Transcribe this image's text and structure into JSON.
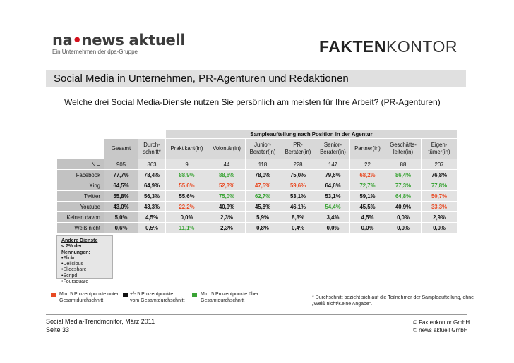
{
  "logo_left": {
    "brand_a": "na",
    "brand_dot": "•",
    "brand_b": "news aktuell",
    "tagline": "Ein Unternehmen der dpa-Gruppe"
  },
  "logo_right": {
    "bold": "FAKTEN",
    "light": "KONTOR"
  },
  "title": "Social Media in Unternehmen, PR-Agenturen und Redaktionen",
  "question": "Welche drei Social Media-Dienste nutzen Sie persönlich am meisten für Ihre Arbeit? (PR-Agenturen)",
  "table": {
    "group_header": "Sampleaufteilung nach Position in der Agentur",
    "columns": [
      "Gesamt",
      "Durch- schnitt*",
      "Praktikant(in)",
      "Volontär(in)",
      "Junior- Berater(in)",
      "PR- Berater(in)",
      "Senior- Berater(in)",
      "Partner(in)",
      "Geschäfts- leiter(in)",
      "Eigen- tümer(in)"
    ],
    "rows": [
      {
        "label": "N =",
        "values": [
          "905",
          "863",
          "9",
          "44",
          "118",
          "228",
          "147",
          "22",
          "88",
          "207"
        ],
        "colors": [
          "",
          "",
          "",
          "",
          "",
          "",
          "",
          "",
          "",
          ""
        ]
      },
      {
        "label": "Facebook",
        "values": [
          "77,7%",
          "78,4%",
          "88,9%",
          "88,6%",
          "78,0%",
          "75,0%",
          "79,6%",
          "68,2%",
          "86,4%",
          "76,8%"
        ],
        "colors": [
          "",
          "",
          "green",
          "green",
          "",
          "",
          "",
          "red",
          "green",
          ""
        ]
      },
      {
        "label": "Xing",
        "values": [
          "64,5%",
          "64,9%",
          "55,6%",
          "52,3%",
          "47,5%",
          "59,6%",
          "64,6%",
          "72,7%",
          "77,3%",
          "77,8%"
        ],
        "colors": [
          "",
          "",
          "red",
          "red",
          "red",
          "red",
          "",
          "green",
          "green",
          "green"
        ]
      },
      {
        "label": "Twitter",
        "values": [
          "55,8%",
          "56,3%",
          "55,6%",
          "75,0%",
          "62,7%",
          "53,1%",
          "53,1%",
          "59,1%",
          "64,8%",
          "50,7%"
        ],
        "colors": [
          "",
          "",
          "",
          "green",
          "green",
          "",
          "",
          "",
          "green",
          "red"
        ]
      },
      {
        "label": "Youtube",
        "values": [
          "43,0%",
          "43,3%",
          "22,2%",
          "40,9%",
          "45,8%",
          "46,1%",
          "54,4%",
          "45,5%",
          "40,9%",
          "33,3%"
        ],
        "colors": [
          "",
          "",
          "red",
          "",
          "",
          "",
          "green",
          "",
          "",
          "red"
        ]
      },
      {
        "label": "Keinen davon",
        "values": [
          "5,0%",
          "4,5%",
          "0,0%",
          "2,3%",
          "5,9%",
          "8,3%",
          "3,4%",
          "4,5%",
          "0,0%",
          "2,9%"
        ],
        "colors": [
          "",
          "",
          "",
          "",
          "",
          "",
          "",
          "",
          "",
          ""
        ]
      },
      {
        "label": "Weiß nicht",
        "values": [
          "0,6%",
          "0,5%",
          "11,1%",
          "2,3%",
          "0,8%",
          "0,4%",
          "0,0%",
          "0,0%",
          "0,0%",
          "0,0%"
        ],
        "colors": [
          "",
          "",
          "green",
          "",
          "",
          "",
          "",
          "",
          "",
          ""
        ]
      }
    ]
  },
  "other_services": {
    "title": "Andere Dienste",
    "subtitle": "< 7% der Nennungen:",
    "items": [
      "•Flickr",
      "•Delicious",
      "•Slideshare",
      "•Scripd",
      "•Foursquare"
    ]
  },
  "legend": [
    {
      "color": "#e84a23",
      "line1": "Min. 5 Prozentpunkte unter",
      "line2": "Gesamtdurchschnitt"
    },
    {
      "color": "#111111",
      "line1": "+/- 5 Prozentpunkte",
      "line2": "vom Gesamtdurchschnitt"
    },
    {
      "color": "#3aa335",
      "line1": "Min. 5 Prozentpunkte über",
      "line2": "Gesamtdurchschnitt"
    }
  ],
  "footnote": "* Durchschnitt bezieht sich auf die Teilnehmer der Sampleaufteilung, ohne „Weiß nicht/Keine Angabe“.",
  "footer": {
    "left_line1": "Social Media-Trendmonitor, März 2011",
    "left_line2": "Seite 33",
    "right_line1": "© Faktenkontor GmbH",
    "right_line2": "© news aktuell GmbH"
  }
}
